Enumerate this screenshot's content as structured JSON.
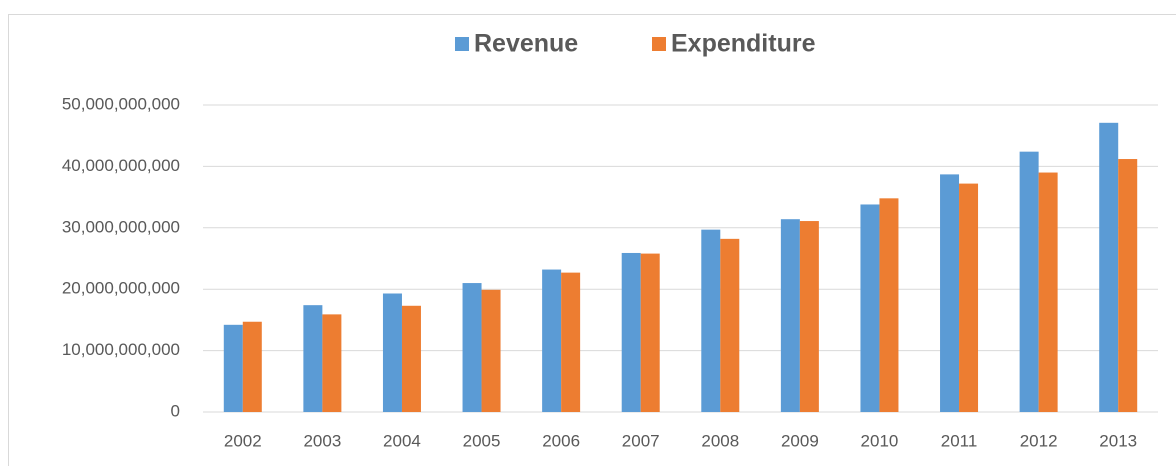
{
  "chart_data": {
    "type": "bar",
    "categories": [
      "2002",
      "2003",
      "2004",
      "2005",
      "2006",
      "2007",
      "2008",
      "2009",
      "2010",
      "2011",
      "2012",
      "2013"
    ],
    "series": [
      {
        "name": "Revenue",
        "color": "#5b9bd5",
        "values": [
          14200000000,
          17400000000,
          19300000000,
          21000000000,
          23200000000,
          25900000000,
          29700000000,
          31400000000,
          33800000000,
          38700000000,
          42400000000,
          47100000000
        ]
      },
      {
        "name": "Expenditure",
        "color": "#ed7d31",
        "values": [
          14700000000,
          15900000000,
          17300000000,
          19900000000,
          22700000000,
          25800000000,
          28200000000,
          31100000000,
          34800000000,
          37200000000,
          39000000000,
          41200000000
        ]
      }
    ],
    "ylim": [
      0,
      50000000000
    ],
    "yticks": [
      0,
      {
        "value": 10000000000,
        "label": "10,000,000,000"
      },
      {
        "value": 20000000000,
        "label": "20,000,000,000"
      },
      {
        "value": 30000000000,
        "label": "30,000,000,000"
      },
      {
        "value": 40000000000,
        "label": "40,000,000,000"
      },
      {
        "value": 50000000000,
        "label": "50,000,000,000"
      }
    ],
    "grid": true,
    "legend": "top"
  }
}
